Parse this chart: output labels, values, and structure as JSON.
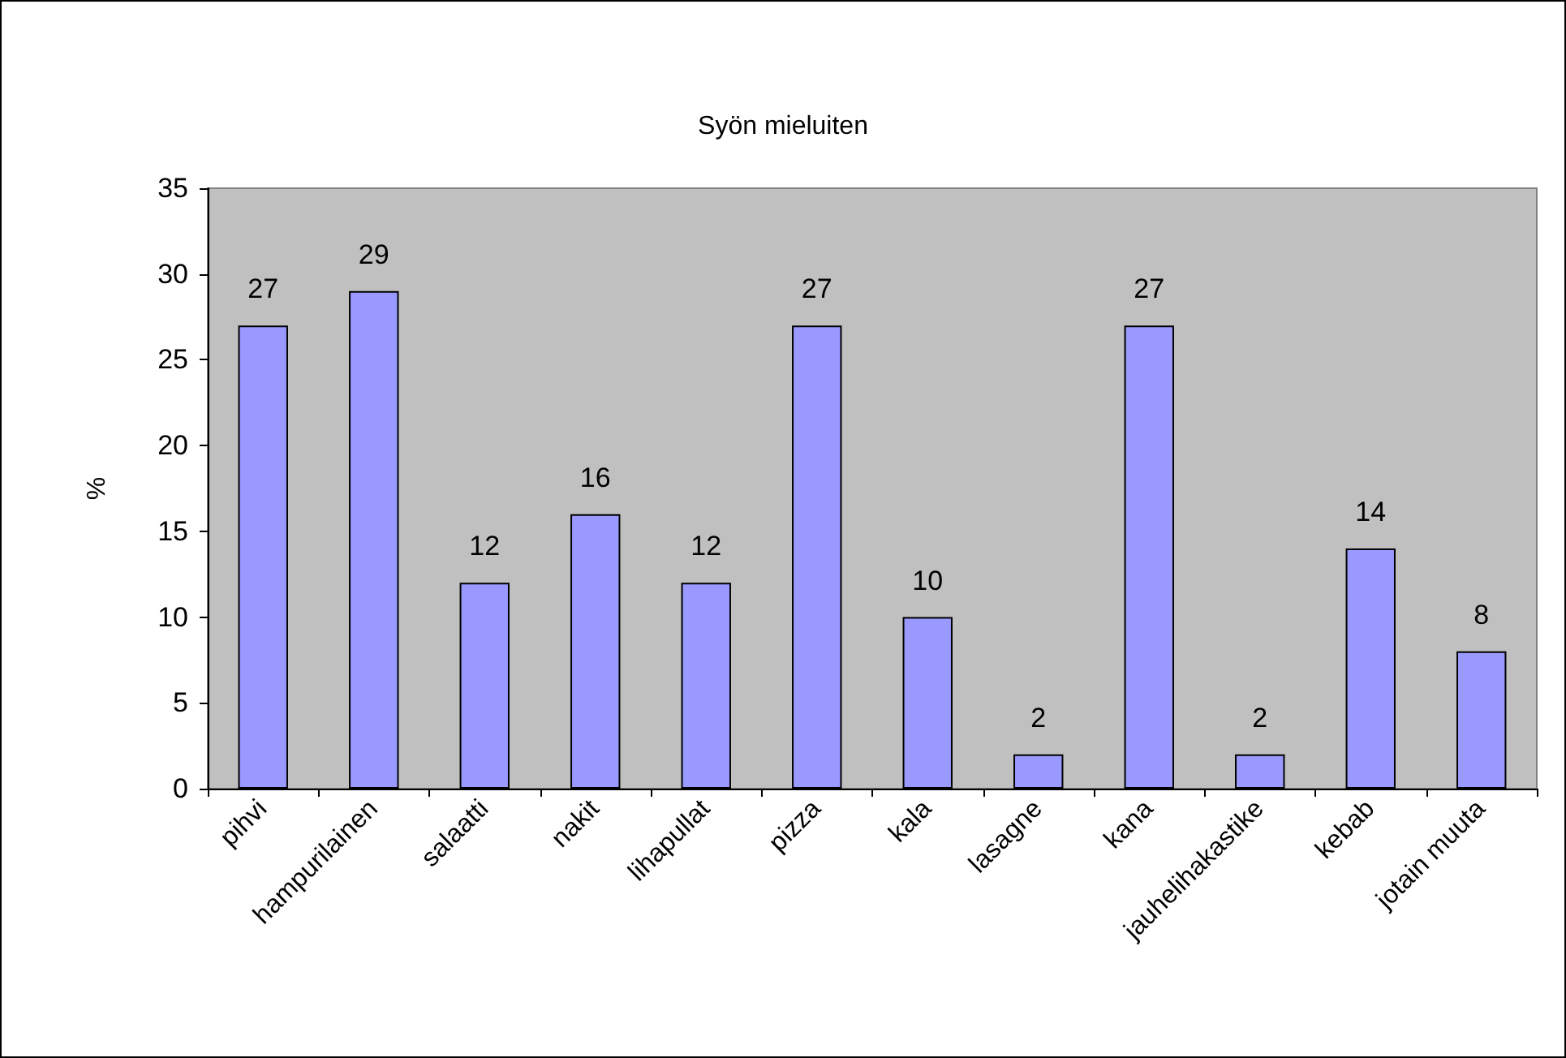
{
  "chart_data": {
    "type": "bar",
    "title": "Syön mieluiten",
    "ylabel": "%",
    "categories": [
      "pihvi",
      "hampurilainen",
      "salaatti",
      "nakit",
      "lihapullat",
      "pizza",
      "kala",
      "lasagne",
      "kana",
      "jauhelihakastike",
      "kebab",
      "jotain muuta"
    ],
    "values": [
      27,
      29,
      12,
      16,
      12,
      27,
      10,
      2,
      27,
      2,
      14,
      8
    ],
    "color": "#9999ff",
    "ylim": [
      0,
      35
    ],
    "yticks": [
      0,
      5,
      10,
      15,
      20,
      25,
      30,
      35
    ],
    "grid": false,
    "data_labels": true
  }
}
